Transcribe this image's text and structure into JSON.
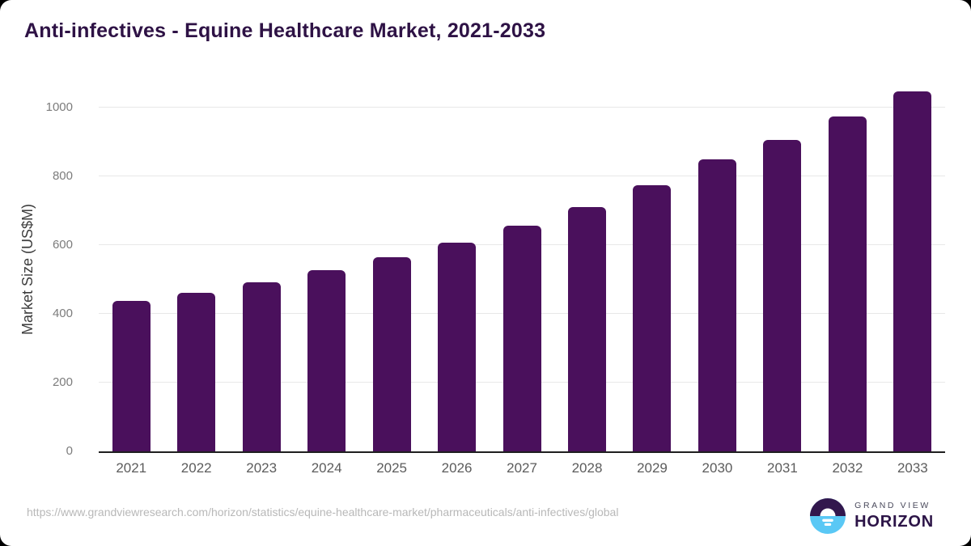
{
  "page_title": "Anti-infectives - Equine Healthcare Market, 2021-2033",
  "chart_data": {
    "type": "bar",
    "title": "Anti-infectives - Equine Healthcare Market, 2021-2033",
    "categories": [
      "2021",
      "2022",
      "2023",
      "2024",
      "2025",
      "2026",
      "2027",
      "2028",
      "2029",
      "2030",
      "2031",
      "2032",
      "2033"
    ],
    "values": [
      438,
      462,
      492,
      527,
      564,
      608,
      656,
      710,
      775,
      850,
      906,
      973,
      1046
    ],
    "xlabel": "",
    "ylabel": "Market Size (US$M)",
    "ylim": [
      0,
      1058
    ],
    "yticks": [
      0,
      200,
      400,
      600,
      800,
      1000
    ],
    "grid": true,
    "legend_position": "none",
    "bar_color": "#4A105C"
  },
  "footer": {
    "source_url": "https://www.grandviewresearch.com/horizon/statistics/equine-healthcare-market/pharmaceuticals/anti-infectives/global",
    "brand_line1": "GRAND VIEW",
    "brand_line2": "HORIZON"
  },
  "colors": {
    "title": "#2E1245",
    "bar": "#4A105C",
    "axis_line": "#1F1F1F",
    "gridline": "#E8E8E8",
    "ytick_label": "#7C7C7C",
    "xtick_label": "#5C5C5C",
    "url": "#B8B8B8",
    "logo_purple": "#32174D",
    "logo_blue": "#5AC8F5",
    "logo_horizon_text": "#2C1447"
  }
}
